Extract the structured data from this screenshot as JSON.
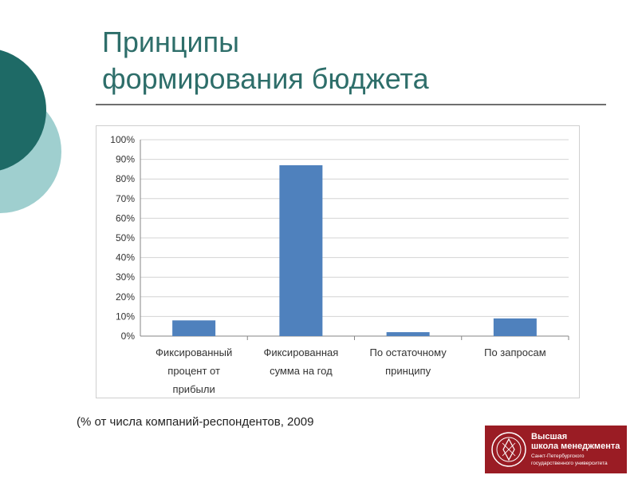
{
  "slide": {
    "title_lines": [
      "Принципы",
      "формирования бюджета"
    ],
    "caption": "(% от числа компаний-респондентов, 2009",
    "accent_color": "#2e6e6a",
    "decor_colors": [
      "#1e6a66",
      "#9fcfcf"
    ]
  },
  "chart_data": {
    "type": "bar",
    "categories": [
      [
        "Фиксированный",
        "процент от",
        "прибыли"
      ],
      [
        "Фиксированная",
        "сумма на год"
      ],
      [
        "По остаточному",
        "принципу"
      ],
      [
        "По запросам"
      ]
    ],
    "values": [
      8,
      87,
      2,
      9
    ],
    "ylim": [
      0,
      100
    ],
    "yticks": [
      "0%",
      "10%",
      "20%",
      "30%",
      "40%",
      "50%",
      "60%",
      "70%",
      "80%",
      "90%",
      "100%"
    ],
    "title": "",
    "xlabel": "",
    "ylabel": "",
    "grid": true,
    "bar_color": "#4f81bd"
  },
  "logo": {
    "line1": "Высшая",
    "line2": "школа менеджмента",
    "line3": "Санкт-Петербургского",
    "line4": "государственного университета",
    "color": "#9a1c24"
  }
}
